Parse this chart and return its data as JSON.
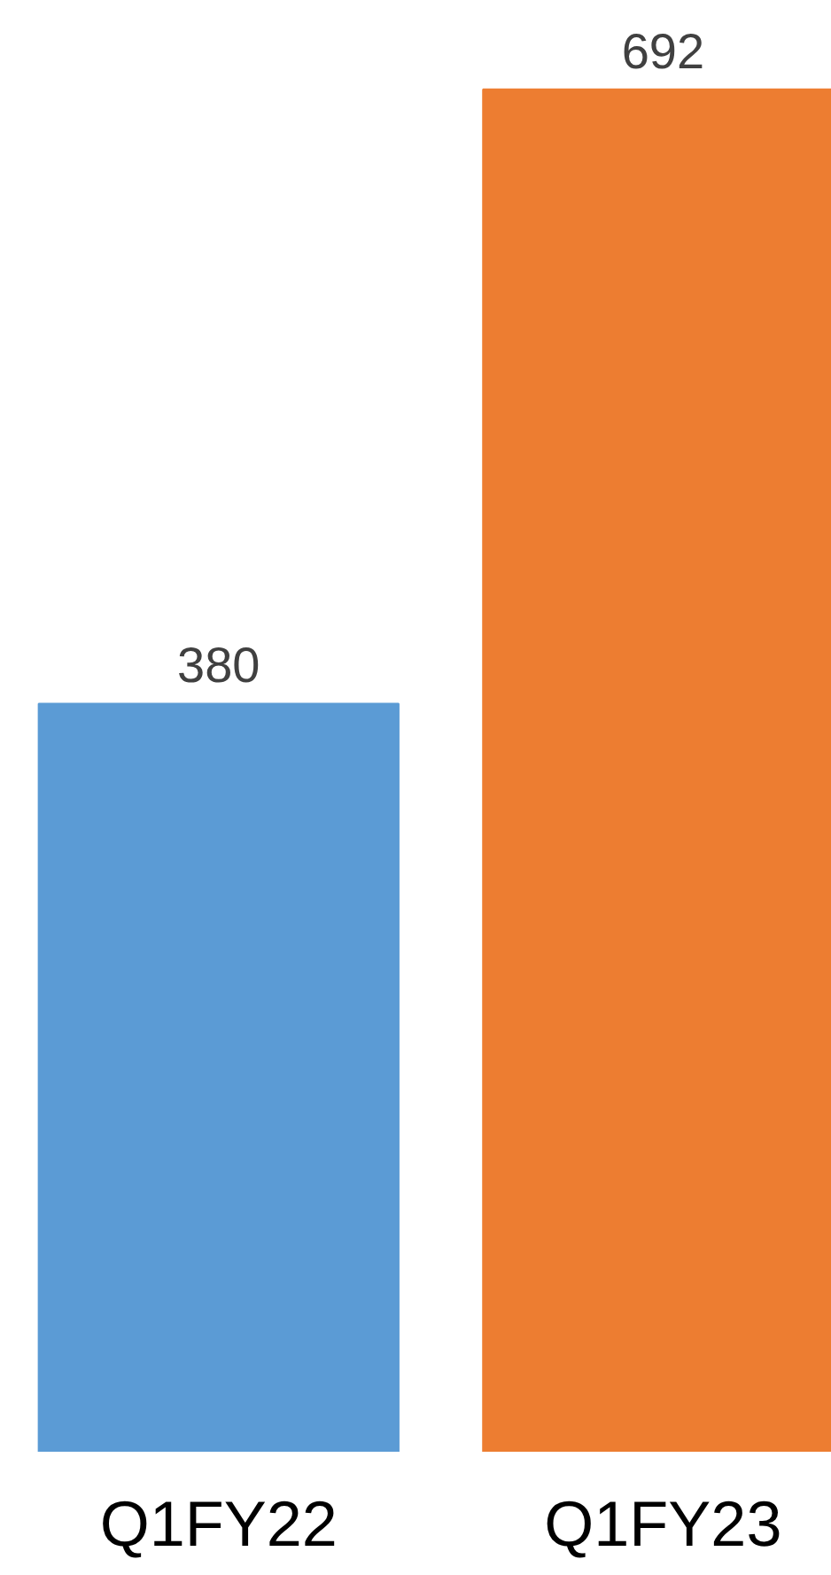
{
  "chart_data": {
    "type": "bar",
    "categories": [
      "Q1FY22",
      "Q1FY23"
    ],
    "values": [
      380,
      692
    ],
    "colors": [
      "#5b9bd5",
      "#ed7d31"
    ],
    "data_labels": true
  }
}
